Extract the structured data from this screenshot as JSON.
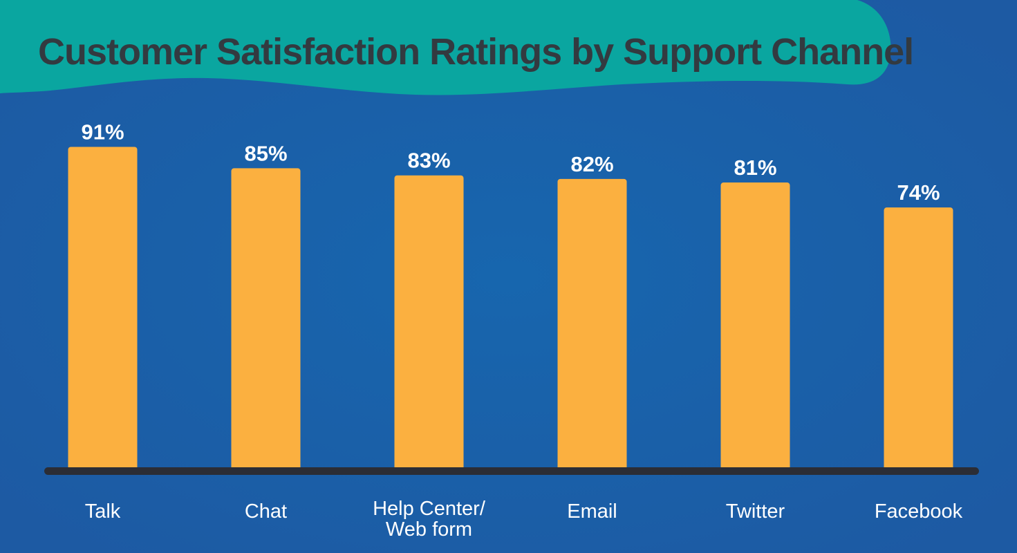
{
  "colors": {
    "background": "#1d5aa3",
    "background_center": "#1766ae",
    "banner": "#0aa6a0",
    "title_text": "#333a40",
    "bar": "#fbb040",
    "label_text": "#ffffff",
    "baseline": "#2b2d35"
  },
  "chart_data": {
    "type": "bar",
    "title": "Customer Satisfaction Ratings by Support Channel",
    "xlabel": "",
    "ylabel": "",
    "categories": [
      "Talk",
      "Chat",
      "Help Center/\nWeb form",
      "Email",
      "Twitter",
      "Facebook"
    ],
    "values": [
      91,
      85,
      83,
      82,
      81,
      74
    ],
    "value_labels": [
      "91%",
      "85%",
      "83%",
      "82%",
      "81%",
      "74%"
    ],
    "unit": "%",
    "ylim": [
      0,
      100
    ],
    "grid": false,
    "legend": "none"
  }
}
